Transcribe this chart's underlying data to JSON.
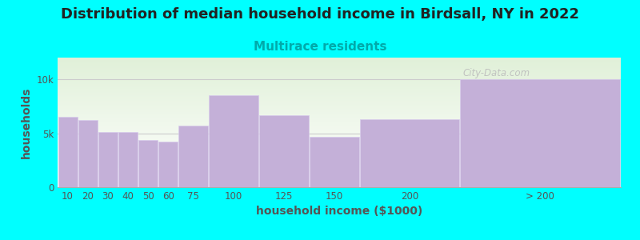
{
  "title": "Distribution of median household income in Birdsall, NY in 2022",
  "subtitle": "Multirace residents",
  "xlabel": "household income ($1000)",
  "ylabel": "households",
  "background_color": "#00FFFF",
  "plot_bg_top": "#e0f0d8",
  "plot_bg_bottom": "#ffffff",
  "bar_color": "#c4b0d8",
  "bar_edge_color": "#d8ccec",
  "bar_linewidth": 0.5,
  "categories": [
    "10",
    "20",
    "30",
    "40",
    "50",
    "60",
    "75",
    "100",
    "125",
    "150",
    "200",
    "> 200"
  ],
  "values": [
    6500,
    6200,
    5100,
    5100,
    4400,
    4200,
    5700,
    8500,
    6700,
    4700,
    6300,
    10000
  ],
  "left_edges": [
    0,
    10,
    20,
    30,
    40,
    50,
    60,
    75,
    100,
    125,
    150,
    200
  ],
  "widths": [
    10,
    10,
    10,
    10,
    10,
    10,
    15,
    25,
    25,
    25,
    50,
    80
  ],
  "ylim": [
    0,
    12000
  ],
  "yticks": [
    0,
    5000,
    10000
  ],
  "ytick_labels": [
    "0",
    "5k",
    "10k"
  ],
  "xtick_positions": [
    5,
    15,
    25,
    35,
    45,
    55,
    67.5,
    87.5,
    112.5,
    137.5,
    175,
    240
  ],
  "xtick_labels": [
    "10",
    "20",
    "30",
    "40",
    "50",
    "60",
    "75",
    "100",
    "125",
    "150",
    "200",
    "> 200"
  ],
  "xlim": [
    0,
    280
  ],
  "title_fontsize": 13,
  "subtitle_fontsize": 11,
  "subtitle_color": "#00AAAA",
  "axis_label_fontsize": 10,
  "tick_fontsize": 8.5,
  "title_color": "#222222",
  "axis_color": "#555555",
  "watermark_text": "City-Data.com",
  "watermark_color": "#bbbbbb"
}
